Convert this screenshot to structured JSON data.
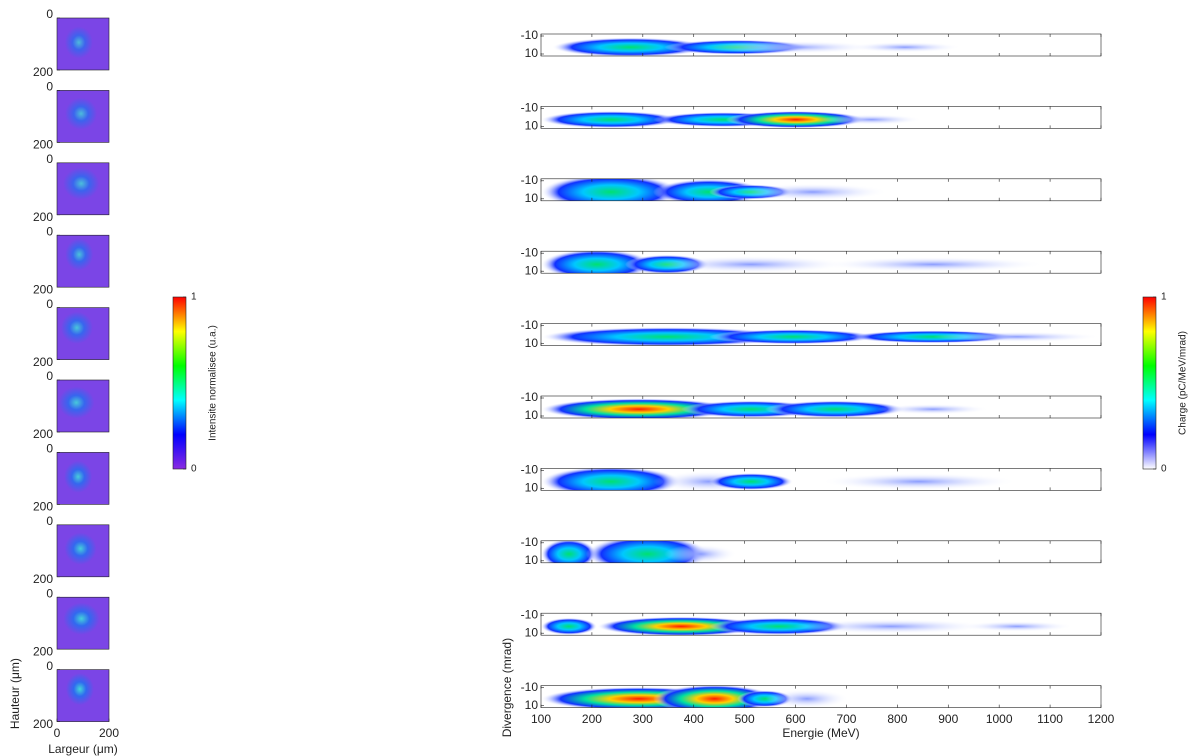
{
  "chart_data": [
    {
      "type": "image-stack",
      "xlabel": "Largeur (μm)",
      "ylabel": "Hauteur (μm)",
      "xlim": [
        0,
        200
      ],
      "ylim": [
        0,
        200
      ],
      "xticks": [
        0,
        200
      ],
      "yticks": [
        0,
        200
      ],
      "yreverse": true,
      "color": "#7b45e6"
    },
    {
      "type": "colorbar",
      "label": "Intensite normalisee (u.a.)",
      "ylim": [
        0,
        1
      ],
      "yticks": [
        0,
        1
      ],
      "colors": [
        "#8a2be2",
        "#0000ff",
        "#00ffff",
        "#00ff00",
        "#ffff00",
        "#ff0000"
      ]
    },
    {
      "type": "spectrum-stack",
      "xlabel": "Energie (MeV)",
      "ylabel": "Divergence (mrad)",
      "xlim": [
        100,
        1200
      ],
      "xticks": [
        100,
        200,
        300,
        400,
        500,
        600,
        700,
        800,
        900,
        1000,
        1100,
        1200
      ],
      "ylim": [
        -10,
        10
      ],
      "yticks": [
        -10,
        10
      ],
      "yreverse": true
    },
    {
      "type": "colorbar",
      "label": "Charge (pC/MeV/mrad)",
      "ylim": [
        0,
        1
      ],
      "yticks": [
        0,
        1
      ],
      "colors": [
        "#ffffff",
        "#0000ff",
        "#00ffff",
        "#00ff00",
        "#ffff00",
        "#ff0000"
      ]
    }
  ]
}
